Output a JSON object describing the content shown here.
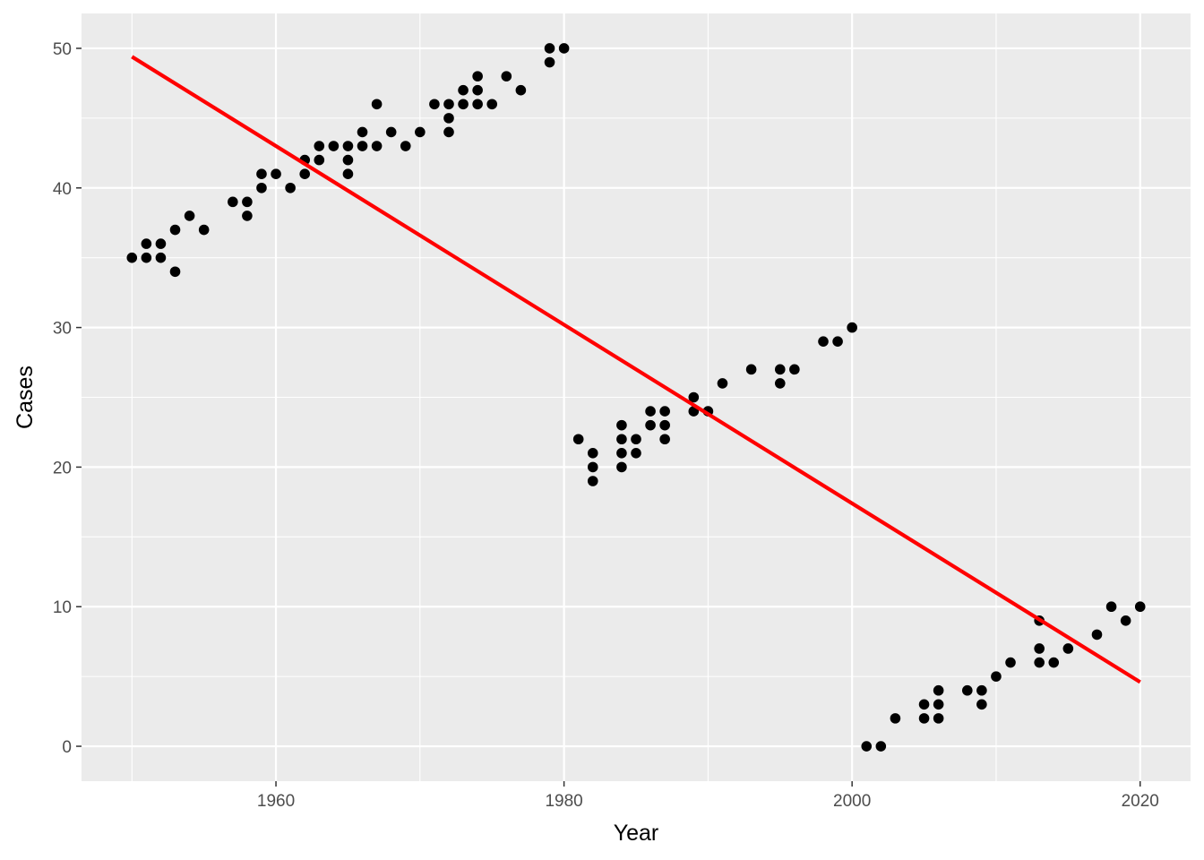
{
  "chart_data": {
    "type": "scatter",
    "title": "",
    "xlabel": "Year",
    "ylabel": "Cases",
    "xlim": [
      1946.5,
      2023.5
    ],
    "ylim": [
      -2.5,
      52.5
    ],
    "x_ticks": [
      1960,
      1980,
      2000,
      2020
    ],
    "x_tick_labels": [
      "1960",
      "1980",
      "2000",
      "2020"
    ],
    "y_ticks": [
      0,
      10,
      20,
      30,
      40,
      50
    ],
    "y_tick_labels": [
      "0",
      "10",
      "20",
      "30",
      "40",
      "50"
    ],
    "grid": true,
    "legend": "none",
    "colors": {
      "panel_background": "#ebebeb",
      "grid": "#ffffff",
      "points": "#000000",
      "trend_line": "#ff0000"
    },
    "points": [
      [
        1950,
        35
      ],
      [
        1951,
        35
      ],
      [
        1951,
        36
      ],
      [
        1952,
        35
      ],
      [
        1952,
        36
      ],
      [
        1953,
        34
      ],
      [
        1953,
        37
      ],
      [
        1954,
        38
      ],
      [
        1955,
        37
      ],
      [
        1957,
        39
      ],
      [
        1958,
        38
      ],
      [
        1958,
        39
      ],
      [
        1959,
        40
      ],
      [
        1959,
        41
      ],
      [
        1960,
        41
      ],
      [
        1961,
        40
      ],
      [
        1962,
        41
      ],
      [
        1962,
        42
      ],
      [
        1963,
        42
      ],
      [
        1963,
        43
      ],
      [
        1964,
        43
      ],
      [
        1965,
        41
      ],
      [
        1965,
        42
      ],
      [
        1965,
        43
      ],
      [
        1966,
        43
      ],
      [
        1966,
        44
      ],
      [
        1967,
        43
      ],
      [
        1967,
        46
      ],
      [
        1968,
        44
      ],
      [
        1969,
        43
      ],
      [
        1970,
        44
      ],
      [
        1971,
        46
      ],
      [
        1972,
        44
      ],
      [
        1972,
        45
      ],
      [
        1972,
        46
      ],
      [
        1973,
        46
      ],
      [
        1973,
        47
      ],
      [
        1974,
        46
      ],
      [
        1974,
        47
      ],
      [
        1974,
        48
      ],
      [
        1975,
        46
      ],
      [
        1976,
        48
      ],
      [
        1977,
        47
      ],
      [
        1979,
        49
      ],
      [
        1979,
        50
      ],
      [
        1980,
        50
      ],
      [
        1981,
        22
      ],
      [
        1982,
        19
      ],
      [
        1982,
        20
      ],
      [
        1982,
        21
      ],
      [
        1984,
        20
      ],
      [
        1984,
        21
      ],
      [
        1984,
        22
      ],
      [
        1984,
        23
      ],
      [
        1985,
        21
      ],
      [
        1985,
        22
      ],
      [
        1986,
        23
      ],
      [
        1986,
        24
      ],
      [
        1987,
        22
      ],
      [
        1987,
        23
      ],
      [
        1987,
        24
      ],
      [
        1989,
        24
      ],
      [
        1989,
        25
      ],
      [
        1990,
        24
      ],
      [
        1991,
        26
      ],
      [
        1993,
        27
      ],
      [
        1995,
        26
      ],
      [
        1995,
        27
      ],
      [
        1996,
        27
      ],
      [
        1998,
        29
      ],
      [
        1999,
        29
      ],
      [
        2000,
        30
      ],
      [
        2001,
        0
      ],
      [
        2002,
        0
      ],
      [
        2003,
        2
      ],
      [
        2005,
        2
      ],
      [
        2005,
        3
      ],
      [
        2006,
        2
      ],
      [
        2006,
        3
      ],
      [
        2006,
        4
      ],
      [
        2008,
        4
      ],
      [
        2009,
        3
      ],
      [
        2009,
        4
      ],
      [
        2010,
        5
      ],
      [
        2011,
        6
      ],
      [
        2013,
        6
      ],
      [
        2013,
        7
      ],
      [
        2013,
        9
      ],
      [
        2014,
        6
      ],
      [
        2015,
        7
      ],
      [
        2017,
        8
      ],
      [
        2018,
        10
      ],
      [
        2019,
        9
      ],
      [
        2020,
        10
      ]
    ],
    "trend_line": {
      "x": [
        1950,
        2020
      ],
      "y": [
        49.4,
        4.6
      ]
    }
  }
}
